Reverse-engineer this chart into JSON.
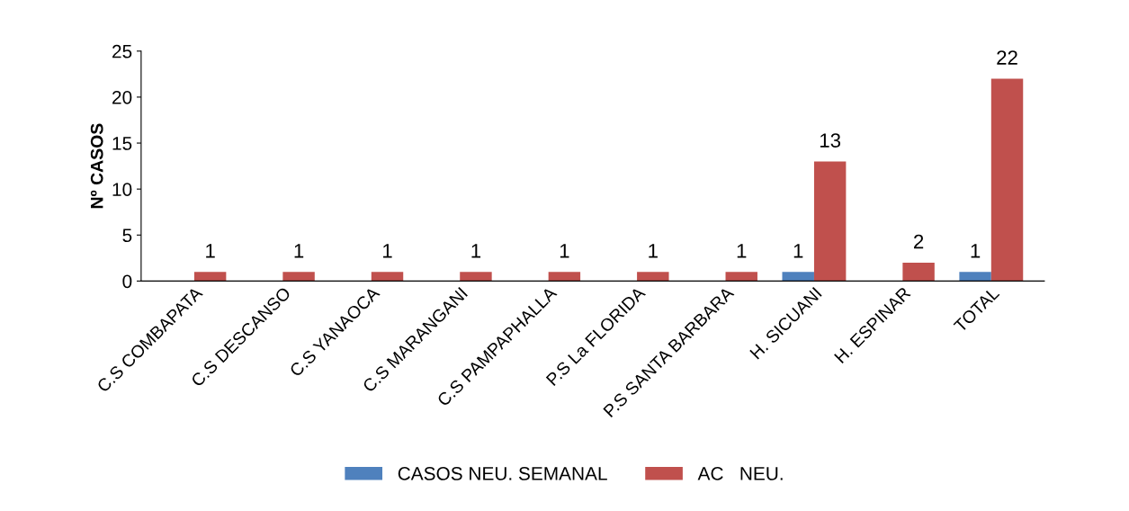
{
  "chart_data": {
    "type": "bar",
    "ylabel": "Nº CASOS",
    "categories": [
      "C.S COMBAPATA",
      "C.S DESCANSO",
      "C.S YANAOCA",
      "C.S MARANGANI",
      "C.S PAMPAPHALLA",
      "P.S La FLORIDA",
      "P.S SANTA BARBARA",
      "H. SICUANI",
      "H. ESPINAR",
      "TOTAL"
    ],
    "series": [
      {
        "name": "CASOS NEU. SEMANAL",
        "color": "#4f81bd",
        "values": [
          null,
          null,
          null,
          null,
          null,
          null,
          null,
          1,
          null,
          1
        ]
      },
      {
        "name": "AC   NEU.",
        "color": "#c0504d",
        "values": [
          1,
          1,
          1,
          1,
          1,
          1,
          1,
          13,
          2,
          22
        ]
      }
    ],
    "ylim": [
      0,
      25
    ],
    "yticks": [
      0,
      5,
      10,
      15,
      20,
      25
    ],
    "grid": false,
    "legend": "bottom",
    "data_labels": true
  }
}
